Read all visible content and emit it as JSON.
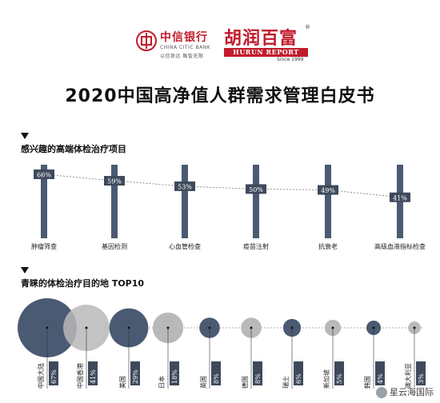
{
  "header": {
    "citic_cn": "中信银行",
    "citic_en": "CHINA CITIC BANK",
    "citic_sub": "以信致远 融智无限",
    "hurun_cn": "胡润百富",
    "hurun_en": "HURUN REPORT",
    "hurun_since": "Since 1999",
    "hurun_reg": "®"
  },
  "title": "2020中国高净值人群需求管理白皮书",
  "section1": {
    "title": "感兴趣的高端体检治疗项目"
  },
  "section2": {
    "title": "青睐的体检治疗目的地 TOP10"
  },
  "colors": {
    "dark": "#4a5a72",
    "grey": "#b9b9b9",
    "label_bg": "#3e4a5c",
    "accent": "#c21b2b"
  },
  "watermark": "星云海国际",
  "chart_data": [
    {
      "type": "bar",
      "title": "感兴趣的高端体检治疗项目",
      "categories": [
        "肿瘤筛查",
        "基因检测",
        "心血管检查",
        "疫苗注射",
        "抗衰老",
        "高级血液指标检查"
      ],
      "values": [
        66,
        59,
        53,
        50,
        49,
        41
      ],
      "value_labels": [
        "66%",
        "59%",
        "53%",
        "50%",
        "49%",
        "41%"
      ],
      "ylim": [
        0,
        100
      ]
    },
    {
      "type": "scatter",
      "title": "青睐的体检治疗目的地 TOP10",
      "categories": [
        "中国大陆",
        "中国香港",
        "美国",
        "日本",
        "英国",
        "德国",
        "瑞士",
        "新加坡",
        "韩国",
        "澳大利亚"
      ],
      "values": [
        67,
        41,
        29,
        18,
        8,
        8,
        6,
        5,
        4,
        3
      ],
      "value_labels": [
        "67%",
        "41%",
        "29%",
        "18%",
        "8%",
        "8%",
        "6%",
        "5%",
        "4%",
        "3%"
      ],
      "visible_value_labels": [
        "67%",
        "41%",
        "29%",
        "18%",
        "8%",
        "8%",
        "6%",
        "5%",
        "4%",
        "3%"
      ],
      "colors": [
        "dark",
        "grey",
        "dark",
        "grey",
        "dark",
        "grey",
        "dark",
        "grey",
        "dark",
        "grey"
      ]
    }
  ]
}
